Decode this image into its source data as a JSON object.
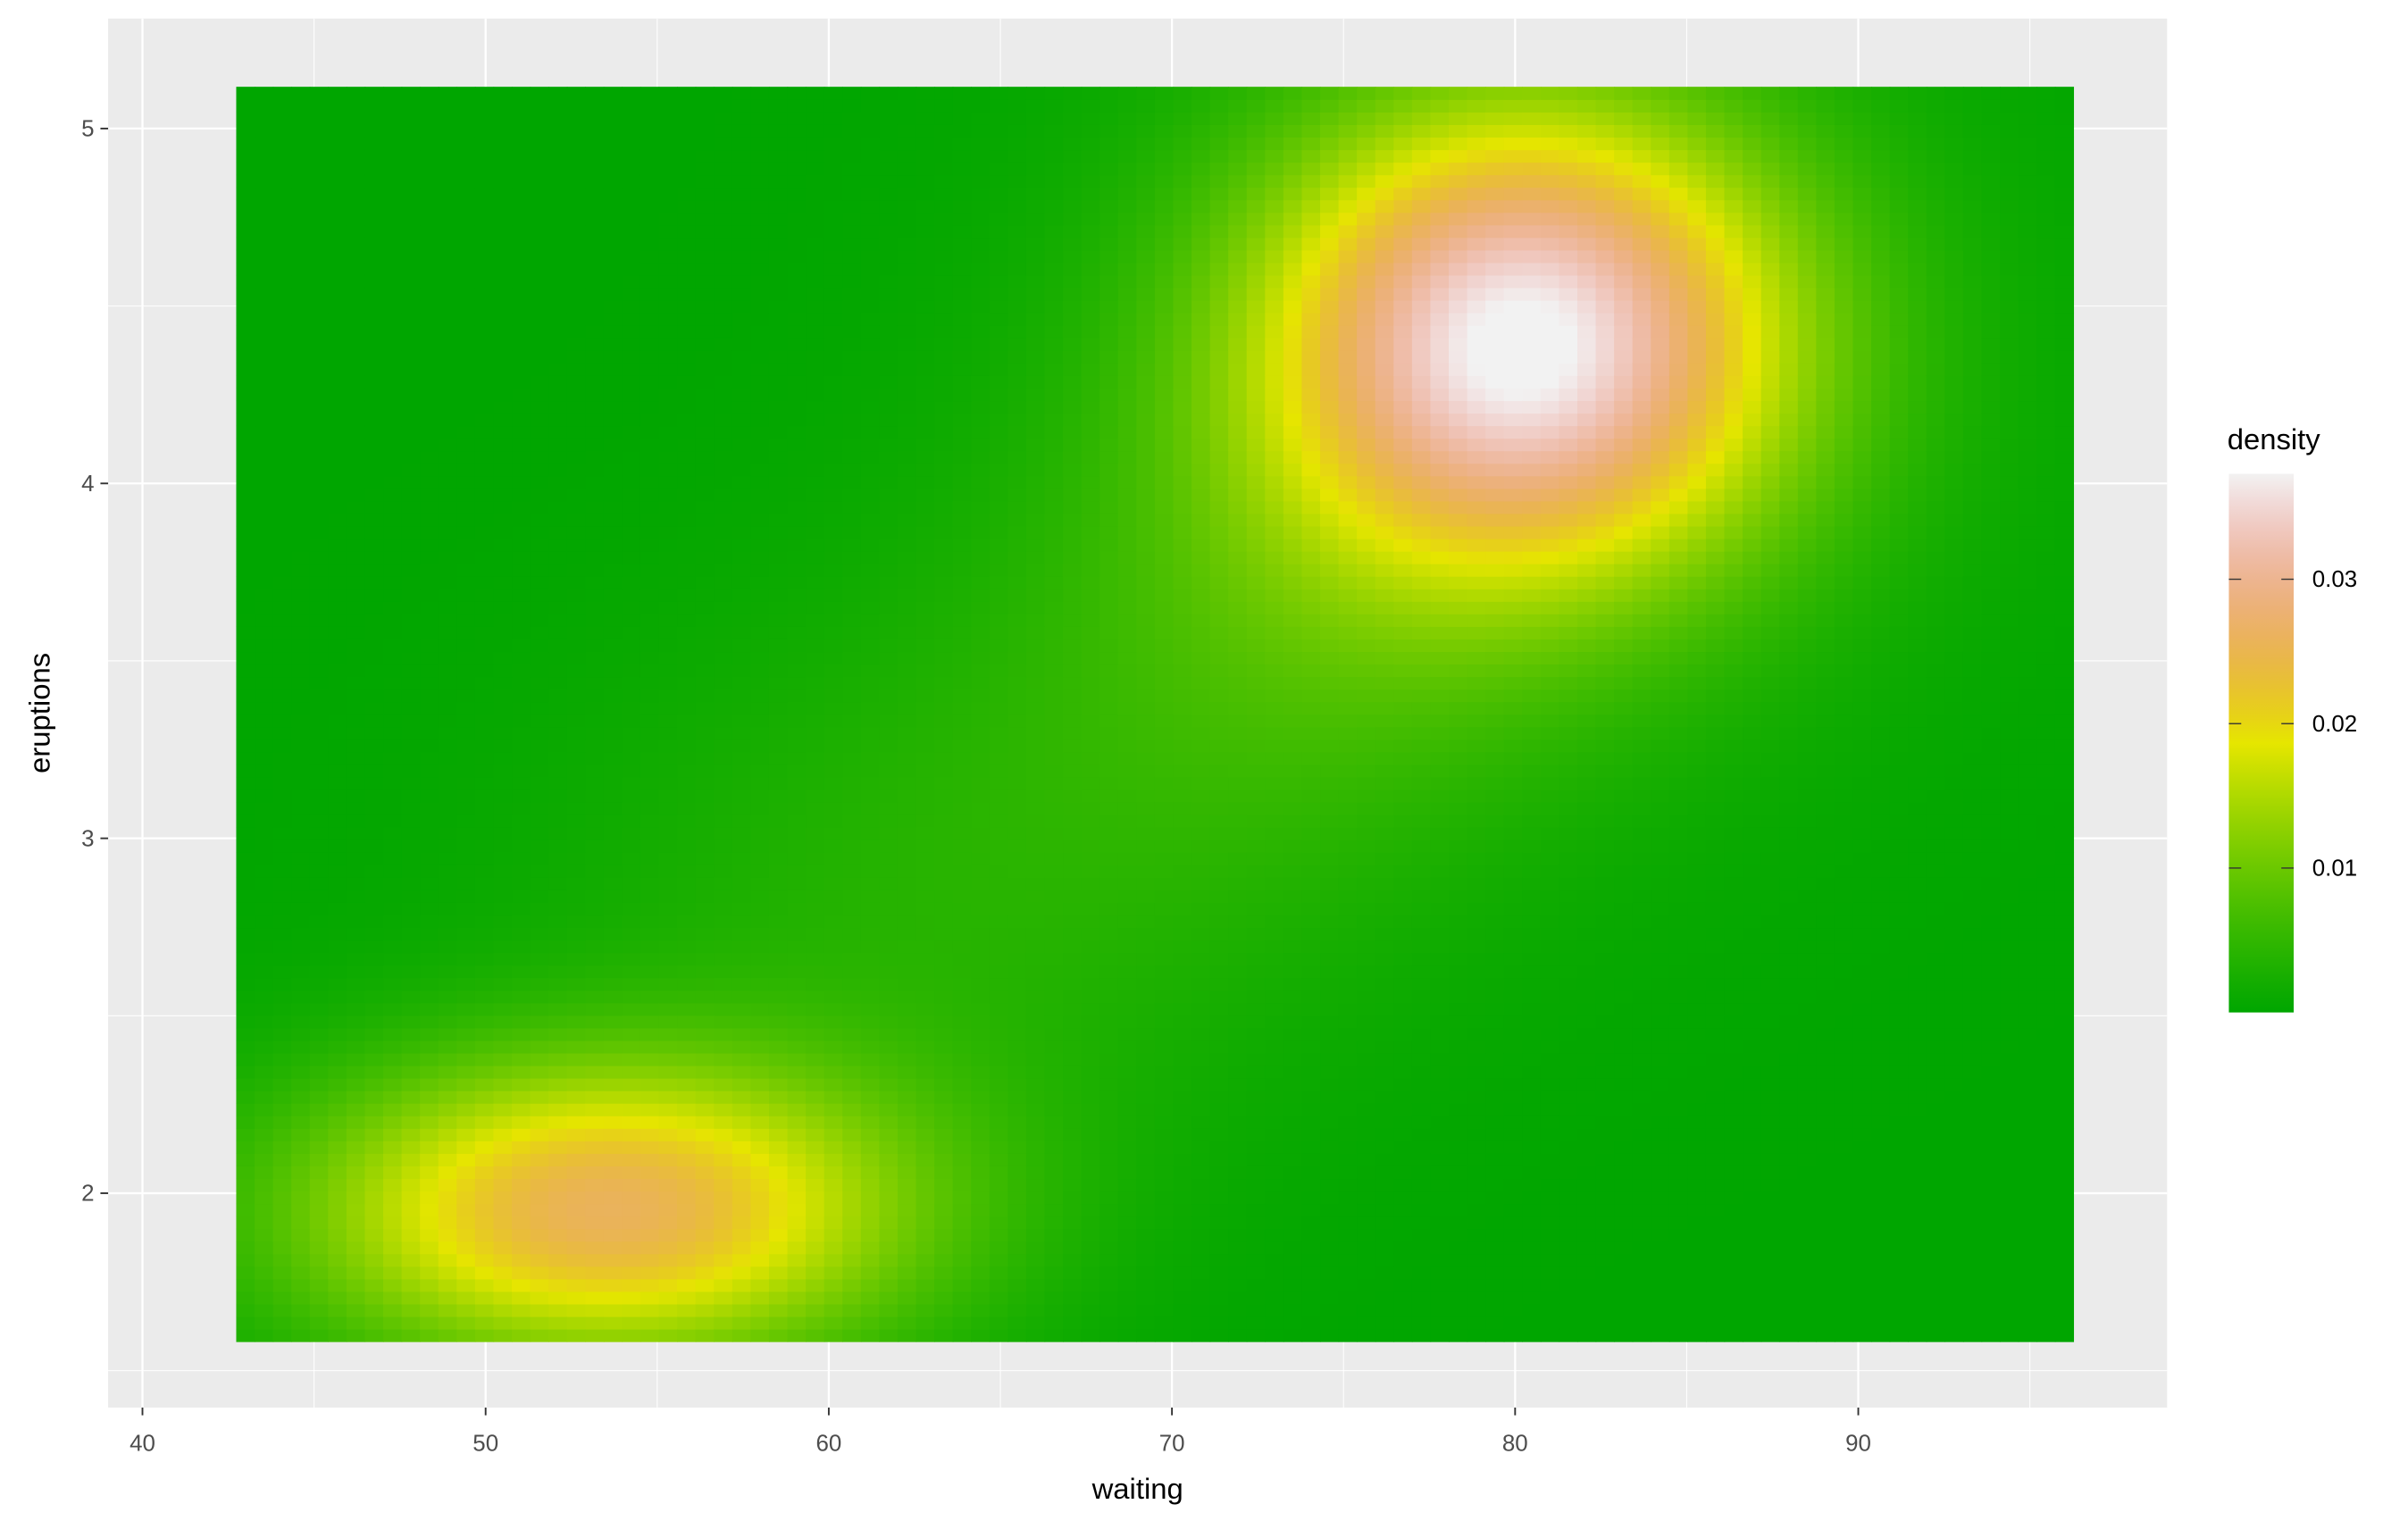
{
  "chart_data": {
    "type": "heatmap",
    "title": "",
    "xlabel": "waiting",
    "ylabel": "eruptions",
    "xlim": [
      39.0,
      99.0
    ],
    "ylim": [
      1.396,
      5.31
    ],
    "data_extent": {
      "x": [
        43,
        96
      ],
      "y": [
        1.6,
        5.1
      ]
    },
    "x_ticks": [
      40,
      50,
      60,
      70,
      80,
      90
    ],
    "x_tick_labels": [
      "40",
      "50",
      "60",
      "70",
      "80",
      "90"
    ],
    "y_ticks": [
      2,
      3,
      4,
      5
    ],
    "y_tick_labels": [
      "2",
      "3",
      "4",
      "5"
    ],
    "grid": true,
    "grid_size": 100,
    "density_peaks": [
      {
        "waiting": 80.3,
        "eruptions": 4.4,
        "density": 0.037
      },
      {
        "waiting": 53.5,
        "eruptions": 1.95,
        "density": 0.0265
      }
    ],
    "legend": {
      "title": "density",
      "placement": "right",
      "range": [
        0,
        0.0373
      ],
      "ticks": [
        0.01,
        0.02,
        0.03
      ],
      "tick_labels": [
        "0.01",
        "0.02",
        "0.03"
      ],
      "palette": "terrain",
      "colors": [
        "#00A600",
        "#E6E600",
        "#ECB176",
        "#F2F2F2"
      ]
    },
    "panel_background": "#EBEBEB",
    "grid_color": "#FFFFFF"
  }
}
